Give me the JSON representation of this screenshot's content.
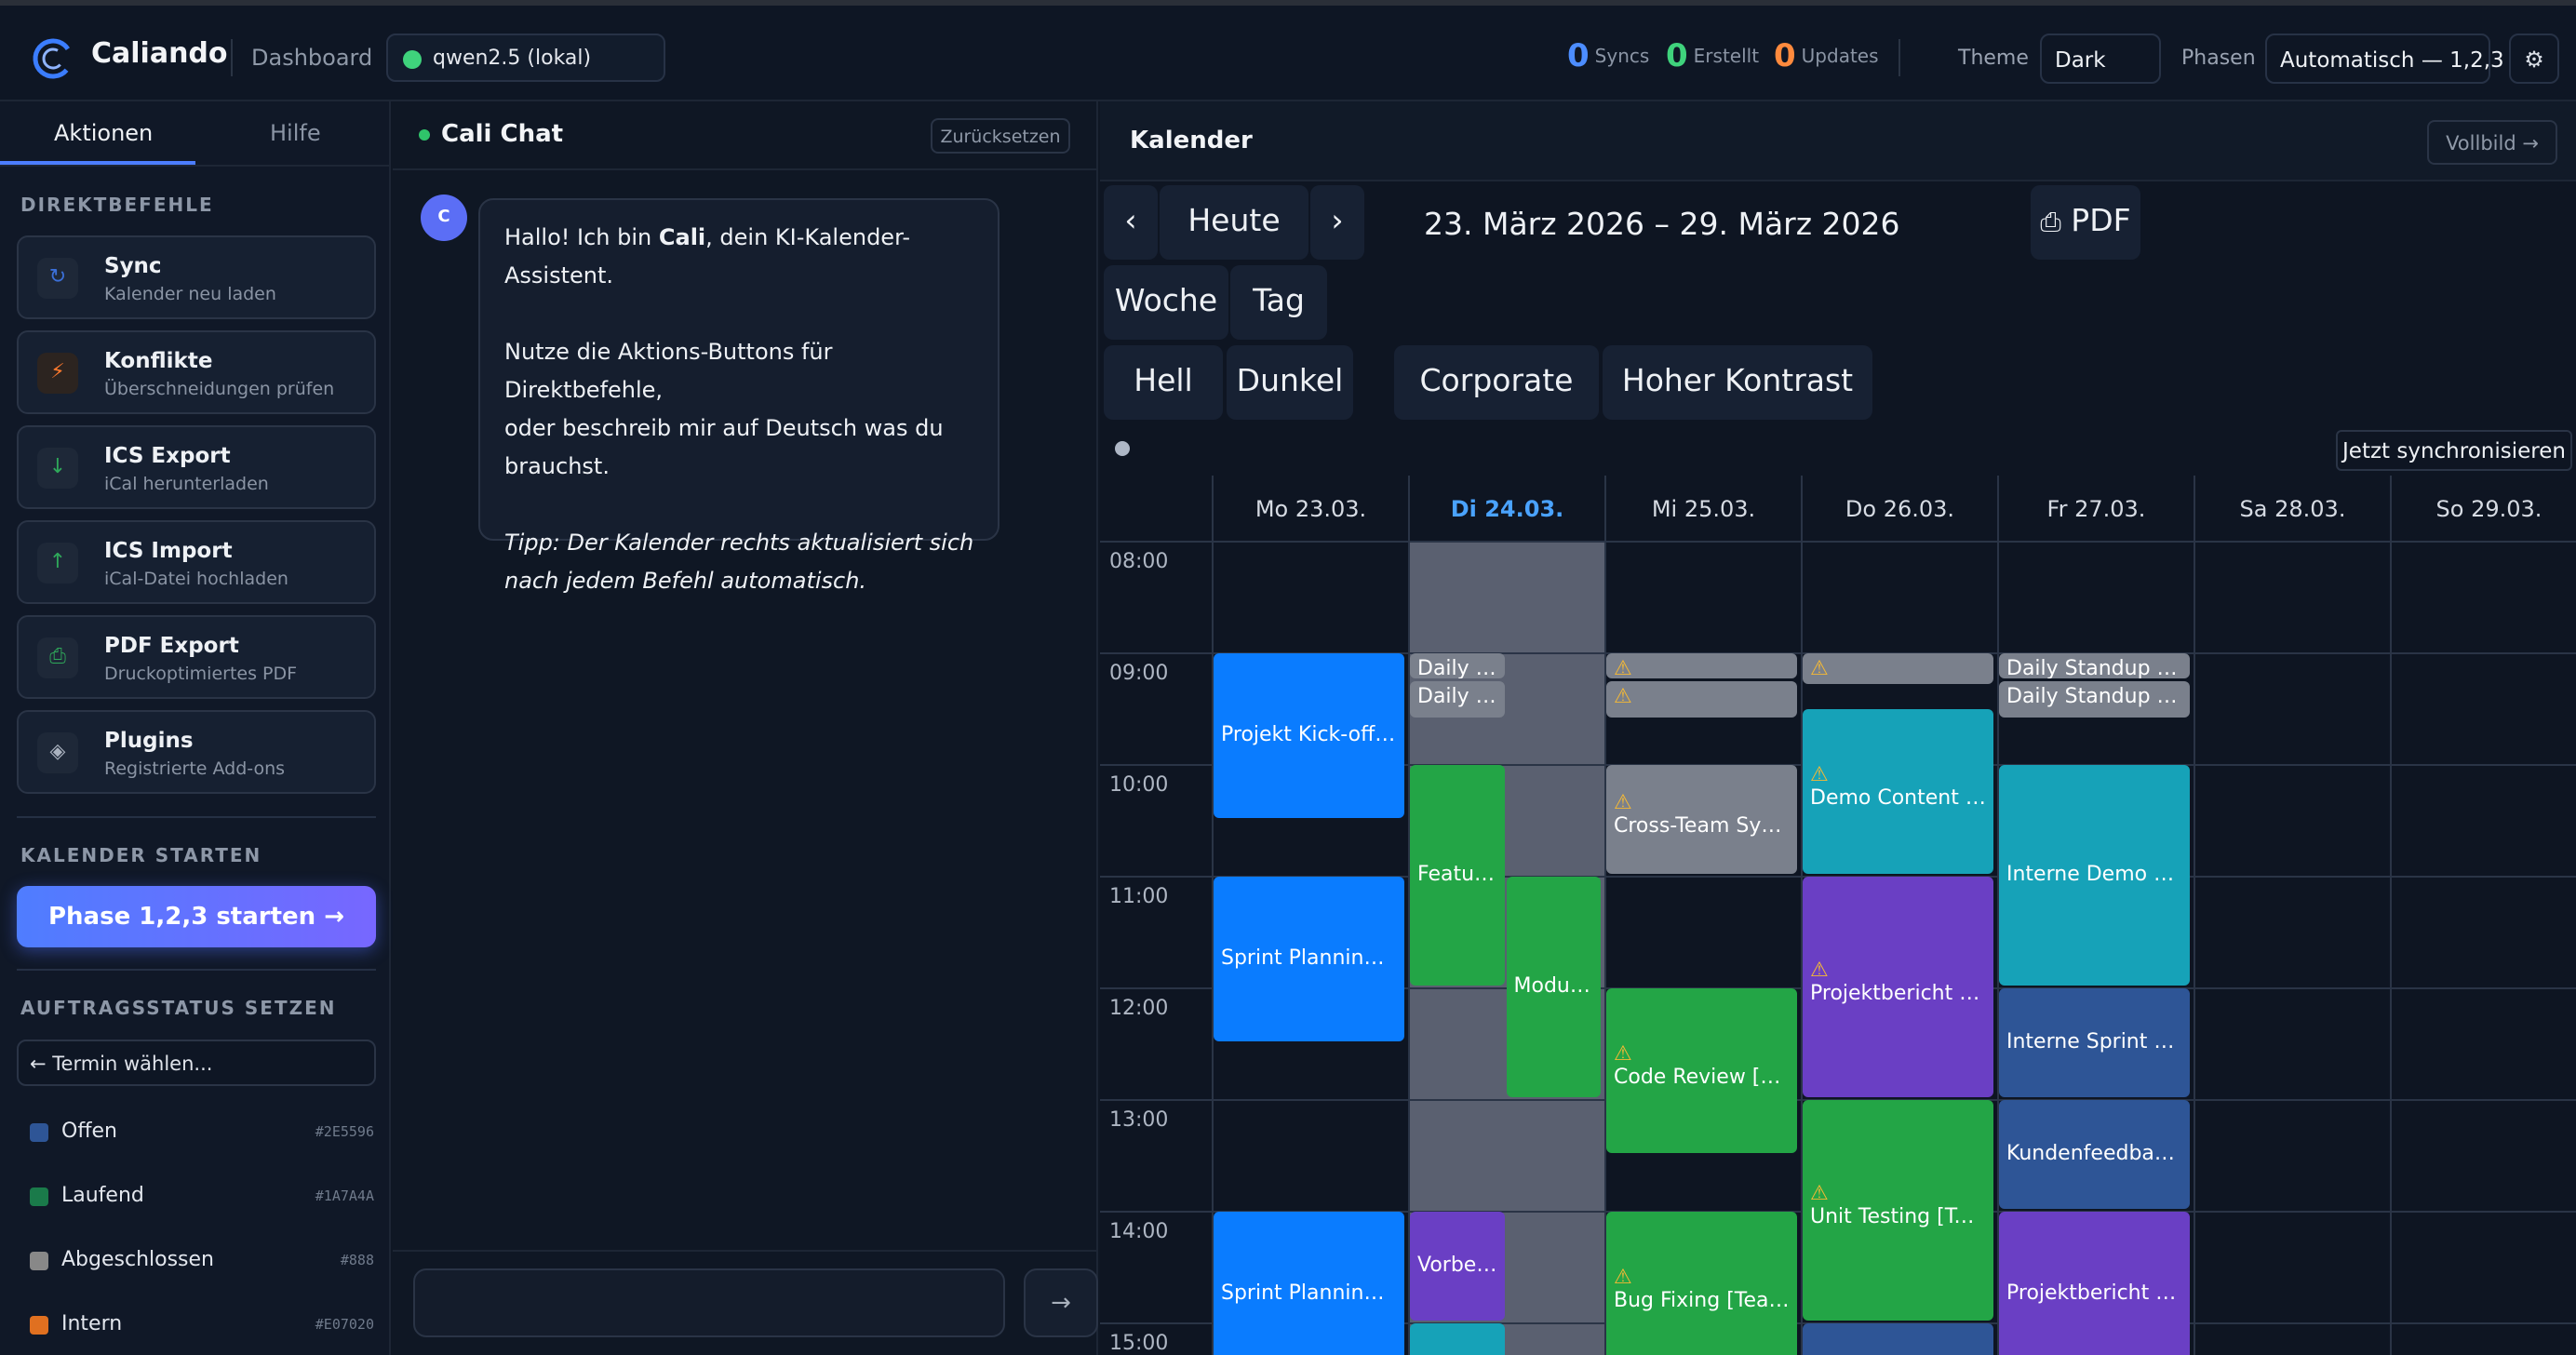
{
  "app": {
    "title": "Caliando",
    "breadcrumb": "Dashboard",
    "model": "qwen2.5 (lokal)",
    "stats": [
      {
        "value": "0",
        "label": "Syncs",
        "color": "#4c8dff"
      },
      {
        "value": "0",
        "label": "Erstellt",
        "color": "#3fd27c"
      },
      {
        "value": "0",
        "label": "Updates",
        "color": "#ff8a3d"
      }
    ],
    "theme_label": "Theme",
    "theme_value": "Dark",
    "phasen_label": "Phasen",
    "phasen_value": "Automatisch — 1,2,3",
    "settings_icon": "gear-icon"
  },
  "sidebar": {
    "tabs": [
      "Aktionen",
      "Hilfe"
    ],
    "section_direct": "DIREKTBEFEHLE",
    "commands": [
      {
        "title": "Sync",
        "sub": "Kalender neu laden",
        "icon": "sync-icon"
      },
      {
        "title": "Konflikte",
        "sub": "Überschneidungen prüfen",
        "icon": "bolt-icon"
      },
      {
        "title": "ICS Export",
        "sub": "iCal herunterladen",
        "icon": "download-icon"
      },
      {
        "title": "ICS Import",
        "sub": "iCal-Datei hochladen",
        "icon": "upload-icon"
      },
      {
        "title": "PDF Export",
        "sub": "Druckoptimiertes PDF",
        "icon": "print-icon"
      },
      {
        "title": "Plugins",
        "sub": "Registrierte Add-ons",
        "icon": "diamond-icon"
      }
    ],
    "section_start": "KALENDER STARTEN",
    "phase_button": "Phase 1,2,3 starten →",
    "section_status": "AUFTRAGSSTATUS SETZEN",
    "termin_select": "← Termin wählen...",
    "statuses": [
      {
        "label": "Offen",
        "hex": "#2E5596",
        "color": "#2E5596"
      },
      {
        "label": "Laufend",
        "hex": "#1A7A4A",
        "color": "#1A7A4A"
      },
      {
        "label": "Abgeschlossen",
        "hex": "#888",
        "color": "#888888"
      },
      {
        "label": "Intern",
        "hex": "#E07020",
        "color": "#E07020"
      }
    ]
  },
  "chat": {
    "title": "Cali Chat",
    "reset": "Zurücksetzen",
    "avatar": "C",
    "msg_pre": "Hallo! Ich bin ",
    "msg_name": "Cali",
    "msg_post": ", dein KI-Kalender-Assistent.",
    "msg_p2_l1": "Nutze die Aktions-Buttons für Direktbefehle,",
    "msg_p2_l2": "oder beschreib mir auf Deutsch was du",
    "msg_p2_l3": "brauchst.",
    "msg_tip_l1": "Tipp: Der Kalender rechts aktualisiert sich",
    "msg_tip_l2": "nach jedem Befehl automatisch.",
    "send": "→"
  },
  "calendar": {
    "title": "Kalender",
    "fullscreen": "Vollbild →",
    "prev": "‹",
    "today": "Heute",
    "next": "›",
    "range": "23. März 2026 – 29. März 2026",
    "pdf": "PDF",
    "views": [
      "Woche",
      "Tag"
    ],
    "themes": [
      "Hell",
      "Dunkel",
      "Corporate",
      "Hoher Kontrast"
    ],
    "sync_now": "Jetzt synchronisieren",
    "days": [
      "Mo 23.03.",
      "Di 24.03.",
      "Mi 25.03.",
      "Do 26.03.",
      "Fr 27.03.",
      "Sa 28.03.",
      "So 29.03."
    ],
    "today_index": 1,
    "times": [
      "08:00",
      "09:00",
      "10:00",
      "11:00",
      "12:00",
      "13:00",
      "14:00",
      "15:00"
    ],
    "events": [
      {
        "day": 0,
        "start": 9.0,
        "end": 10.5,
        "title": "Projekt Kick-off (A...",
        "color": "#0a7cff",
        "warn": false,
        "col": 0,
        "cols": 1
      },
      {
        "day": 0,
        "start": 11.0,
        "end": 12.5,
        "title": "Sprint Planning [T...",
        "color": "#0a7cff",
        "warn": false,
        "col": 0,
        "cols": 1
      },
      {
        "day": 0,
        "start": 14.0,
        "end": 15.5,
        "title": "Sprint Planning [T...",
        "color": "#0a7cff",
        "warn": false,
        "col": 0,
        "cols": 1
      },
      {
        "day": 1,
        "start": 9.0,
        "end": 9.25,
        "title": "Daily St...",
        "color": "#7a808c",
        "warn": false,
        "col": 0,
        "cols": 2
      },
      {
        "day": 1,
        "start": 9.25,
        "end": 9.6,
        "title": "Daily St...",
        "color": "#7a808c",
        "warn": false,
        "col": 0,
        "cols": 2
      },
      {
        "day": 1,
        "start": 10.0,
        "end": 12.0,
        "title": "Featur...",
        "color": "#23a546",
        "warn": false,
        "col": 0,
        "cols": 2
      },
      {
        "day": 1,
        "start": 11.0,
        "end": 13.0,
        "title": "Modul ...",
        "color": "#23a546",
        "warn": false,
        "col": 1,
        "cols": 2
      },
      {
        "day": 1,
        "start": 14.0,
        "end": 15.0,
        "title": "Vorber...",
        "color": "#6a3fc4",
        "warn": false,
        "col": 0,
        "cols": 2
      },
      {
        "day": 1,
        "start": 15.0,
        "end": 15.5,
        "title": "",
        "color": "#16a2b8",
        "warn": false,
        "col": 0,
        "cols": 2
      },
      {
        "day": 2,
        "start": 9.0,
        "end": 9.25,
        "title": "",
        "color": "#7a808c",
        "warn": true,
        "col": 0,
        "cols": 1
      },
      {
        "day": 2,
        "start": 9.25,
        "end": 9.6,
        "title": "",
        "color": "#7a808c",
        "warn": true,
        "col": 0,
        "cols": 1
      },
      {
        "day": 2,
        "start": 10.0,
        "end": 11.0,
        "title": "Cross-Team Sync (...",
        "color": "#7a808c",
        "warn": true,
        "col": 0,
        "cols": 1
      },
      {
        "day": 2,
        "start": 12.0,
        "end": 13.5,
        "title": "Code Review [Tea...",
        "color": "#23a546",
        "warn": true,
        "col": 0,
        "cols": 1
      },
      {
        "day": 2,
        "start": 14.0,
        "end": 15.5,
        "title": "Bug Fixing [Team B]",
        "color": "#23a546",
        "warn": true,
        "col": 0,
        "cols": 1
      },
      {
        "day": 3,
        "start": 9.0,
        "end": 9.3,
        "title": "",
        "color": "#7a808c",
        "warn": true,
        "col": 0,
        "cols": 1
      },
      {
        "day": 3,
        "start": 9.5,
        "end": 11.0,
        "title": "Demo Content Vo...",
        "color": "#16a2b8",
        "warn": true,
        "col": 0,
        "cols": 1
      },
      {
        "day": 3,
        "start": 11.0,
        "end": 13.0,
        "title": "Projektbericht Dat...",
        "color": "#6a3fc4",
        "warn": true,
        "col": 0,
        "cols": 1
      },
      {
        "day": 3,
        "start": 13.0,
        "end": 15.0,
        "title": "Unit Testing [Tea...",
        "color": "#23a546",
        "warn": true,
        "col": 0,
        "cols": 1
      },
      {
        "day": 3,
        "start": 15.0,
        "end": 15.5,
        "title": "",
        "color": "#2e5596",
        "warn": false,
        "col": 0,
        "cols": 1
      },
      {
        "day": 4,
        "start": 9.0,
        "end": 9.25,
        "title": "Daily Standup [Te...",
        "color": "#7a808c",
        "warn": false,
        "col": 0,
        "cols": 1
      },
      {
        "day": 4,
        "start": 9.25,
        "end": 9.6,
        "title": "Daily Standup [Te...",
        "color": "#7a808c",
        "warn": false,
        "col": 0,
        "cols": 1
      },
      {
        "day": 4,
        "start": 10.0,
        "end": 12.0,
        "title": "Interne Demo Vor...",
        "color": "#16a2b8",
        "warn": false,
        "col": 0,
        "cols": 1
      },
      {
        "day": 4,
        "start": 12.0,
        "end": 13.0,
        "title": "Interne Sprint De...",
        "color": "#2e5596",
        "warn": false,
        "col": 0,
        "cols": 1
      },
      {
        "day": 4,
        "start": 13.0,
        "end": 14.0,
        "title": "Kundenfeedback ...",
        "color": "#2e5596",
        "warn": false,
        "col": 0,
        "cols": 1
      },
      {
        "day": 4,
        "start": 14.0,
        "end": 15.5,
        "title": "Projektbericht Ers...",
        "color": "#6a3fc4",
        "warn": false,
        "col": 0,
        "cols": 1
      }
    ]
  }
}
